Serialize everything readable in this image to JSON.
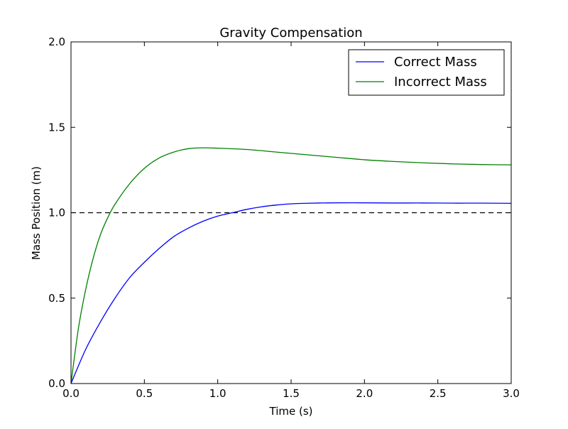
{
  "chart_data": {
    "type": "line",
    "title": "Gravity Compensation",
    "xlabel": "Time (s)",
    "ylabel": "Mass Position (m)",
    "xlim": [
      0.0,
      3.0
    ],
    "ylim": [
      0.0,
      2.0
    ],
    "xticks": [
      0.0,
      0.5,
      1.0,
      1.5,
      2.0,
      2.5,
      3.0
    ],
    "xtick_labels": [
      "0.0",
      "0.5",
      "1.0",
      "1.5",
      "2.0",
      "2.5",
      "3.0"
    ],
    "yticks": [
      0.0,
      0.5,
      1.0,
      1.5,
      2.0
    ],
    "ytick_labels": [
      "0.0",
      "0.5",
      "1.0",
      "1.5",
      "2.0"
    ],
    "grid": false,
    "legend_position": "top-right",
    "reference_line": {
      "y": 1.0,
      "style": "dashed",
      "color": "#000000"
    },
    "series": [
      {
        "name": "Correct Mass",
        "color": "#0000ff",
        "x": [
          0.0,
          0.1,
          0.2,
          0.3,
          0.4,
          0.5,
          0.6,
          0.7,
          0.8,
          0.9,
          1.0,
          1.1,
          1.2,
          1.3,
          1.4,
          1.5,
          1.6,
          1.7,
          1.8,
          2.0,
          2.2,
          2.4,
          2.6,
          2.8,
          3.0
        ],
        "y": [
          0.0,
          0.2,
          0.36,
          0.5,
          0.62,
          0.71,
          0.79,
          0.86,
          0.91,
          0.95,
          0.98,
          1.0,
          1.02,
          1.035,
          1.045,
          1.052,
          1.055,
          1.057,
          1.058,
          1.058,
          1.057,
          1.057,
          1.056,
          1.056,
          1.055
        ]
      },
      {
        "name": "Incorrect Mass",
        "color": "#008000",
        "x": [
          0.0,
          0.05,
          0.1,
          0.15,
          0.2,
          0.25,
          0.3,
          0.4,
          0.5,
          0.6,
          0.7,
          0.8,
          0.9,
          1.0,
          1.2,
          1.4,
          1.6,
          1.8,
          2.0,
          2.2,
          2.4,
          2.6,
          2.8,
          3.0
        ],
        "y": [
          0.0,
          0.32,
          0.55,
          0.73,
          0.87,
          0.97,
          1.05,
          1.17,
          1.26,
          1.32,
          1.355,
          1.375,
          1.38,
          1.378,
          1.37,
          1.355,
          1.34,
          1.325,
          1.31,
          1.3,
          1.292,
          1.286,
          1.282,
          1.28
        ]
      }
    ]
  }
}
